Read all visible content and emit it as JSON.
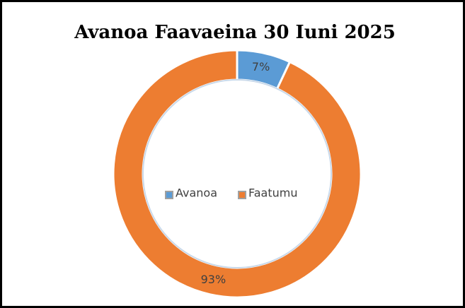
{
  "chart_data": {
    "type": "pie",
    "title": "Avanoa Faavaeina 30 Iuni 2025",
    "categories": [
      "Avanoa",
      "Faatumu"
    ],
    "values": [
      7,
      93
    ],
    "value_labels": [
      "7%",
      "93%"
    ],
    "colors": [
      "#5b9bd5",
      "#ed7d31"
    ],
    "donut": true,
    "legend": "center"
  }
}
